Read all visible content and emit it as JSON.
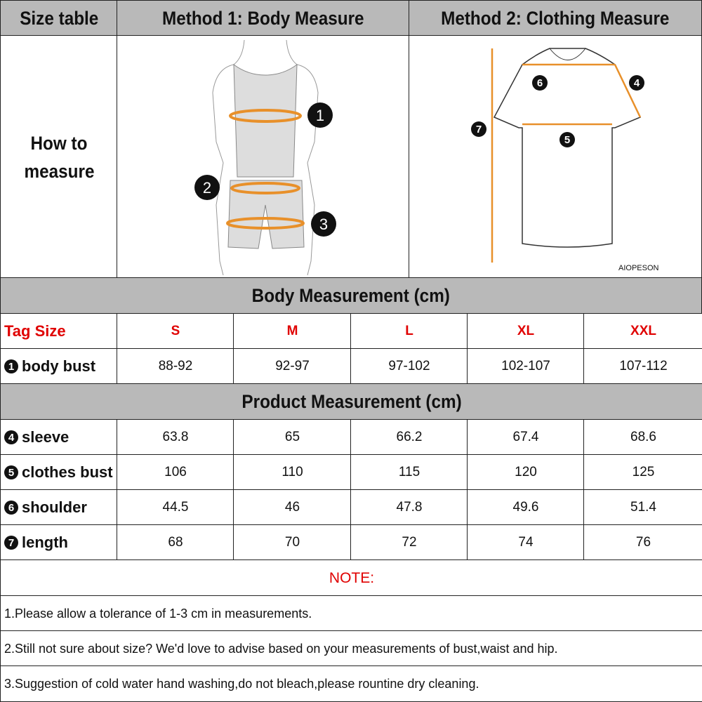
{
  "header": {
    "size_table": "Size table",
    "method1": "Method 1: Body  Measure",
    "method2": "Method 2: Clothing Measure"
  },
  "how_to": "How to measure",
  "body_markers": [
    "1",
    "2",
    "3"
  ],
  "clothing_markers": [
    "6",
    "4",
    "7",
    "5"
  ],
  "brand": "AIOPESON",
  "body_section": "Body Measurement (cm)",
  "product_section": "Product Measurement (cm)",
  "tag_label": "Tag Size",
  "sizes": [
    "S",
    "M",
    "L",
    "XL",
    "XXL"
  ],
  "body_rows": [
    {
      "num": "1",
      "label": "body bust",
      "values": [
        "88-92",
        "92-97",
        "97-102",
        "102-107",
        "107-112"
      ]
    }
  ],
  "product_rows": [
    {
      "num": "4",
      "label": "sleeve",
      "values": [
        "63.8",
        "65",
        "66.2",
        "67.4",
        "68.6"
      ]
    },
    {
      "num": "5",
      "label": "clothes bust",
      "values": [
        "106",
        "110",
        "115",
        "120",
        "125"
      ]
    },
    {
      "num": "6",
      "label": "shoulder",
      "values": [
        "44.5",
        "46",
        "47.8",
        "49.6",
        "51.4"
      ]
    },
    {
      "num": "7",
      "label": "length",
      "values": [
        "68",
        "70",
        "72",
        "74",
        "76"
      ]
    }
  ],
  "note_title": "NOTE:",
  "notes": [
    "1.Please allow a tolerance of 1-3 cm in measurements.",
    "2.Still not sure about size? We'd love to advise based on your measurements of bust,waist and hip.",
    "3.Suggestion of cold water hand washing,do not bleach,please rountine dry cleaning."
  ],
  "colors": {
    "header_bg": "#b9b9b9",
    "accent": "#e00000",
    "measure_line": "#e8902a"
  }
}
